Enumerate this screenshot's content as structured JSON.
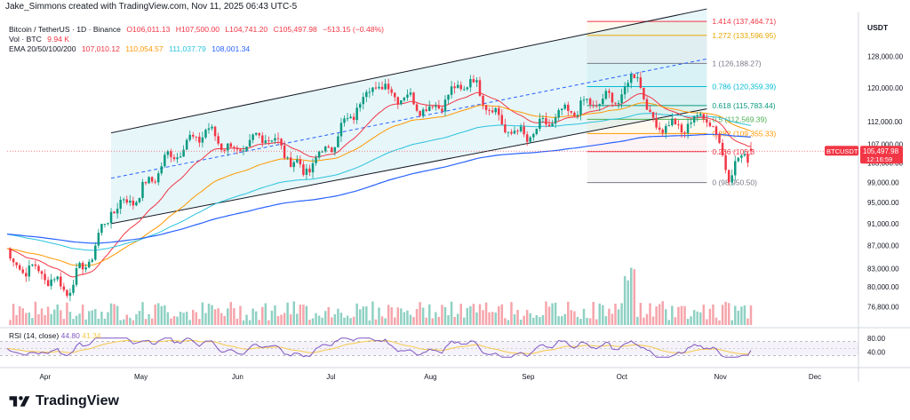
{
  "header": {
    "text": "Jake_Simmons created with TradingView.com, Nov 11, 2025 06:43 UTC-5"
  },
  "legend": {
    "symbol": "Bitcoin / TetherUS · 1D · Binance",
    "open": "O106,011.13",
    "high": "H107,500.00",
    "low": "L104,741.20",
    "close": "C105,497.98",
    "change": "−513.15 (−0.48%)",
    "vol_label": "Vol · BTC",
    "vol_value": "9.94 K",
    "ema_label": "EMA 20/50/100/200",
    "ema20": "107,010.12",
    "ema50": "110,054.57",
    "ema100": "111,037.79",
    "ema200": "108,001.34"
  },
  "currency": "USDT",
  "price_axis": [
    "128,000.00",
    "120,000.00",
    "112,000.00",
    "107,000.00",
    "103,000.00",
    "99,000.00",
    "95,000.00",
    "91,000.00",
    "87,000.00",
    "83,000.00",
    "80,000.00",
    "76,800.00"
  ],
  "price_tag": {
    "symbol": "BTCUSDT",
    "value": "105,497.98",
    "countdown": "12:16:59"
  },
  "fib_levels": [
    {
      "label": "1.414 (137,464.71)",
      "price": 137464.71,
      "color": "#f23645"
    },
    {
      "label": "1.272 (133,596.95)",
      "price": 133596.95,
      "color": "#e6a700"
    },
    {
      "label": "1 (126,188.27)",
      "price": 126188.27,
      "color": "#787b86"
    },
    {
      "label": "0.786 (120,359.39)",
      "price": 120359.39,
      "color": "#00bcd4"
    },
    {
      "label": "0.618 (115,783.44)",
      "price": 115783.44,
      "color": "#089981"
    },
    {
      "label": "0.5 (112,569.39)",
      "price": 112569.39,
      "color": "#4caf50"
    },
    {
      "label": "0.382 (109,355.33)",
      "price": 109355.33,
      "color": "#ff9800"
    },
    {
      "label": "0.236 (105,3",
      "price": 105384,
      "color": "#f23645"
    },
    {
      "label": "0 (98,950.50)",
      "price": 98950.5,
      "color": "#787b86"
    }
  ],
  "rsi": {
    "label": "RSI (14, close)",
    "value1": "44.80",
    "value2": "41.34",
    "axis": [
      "80.00",
      "40.00"
    ]
  },
  "time_axis": [
    "Apr",
    "May",
    "Jun",
    "Jul",
    "Aug",
    "Sep",
    "Oct",
    "Nov",
    "Dec"
  ],
  "footer": {
    "brand": "TradingView"
  },
  "chart_data": {
    "type": "candlestick",
    "symbol": "BTCUSDT",
    "x_range": [
      "Mar 20, 2025",
      "Nov 11, 2025"
    ],
    "y_range": [
      74000,
      140000
    ],
    "x": [
      "Mar 20",
      "Mar 30",
      "Apr 8",
      "Apr 15",
      "Apr 22",
      "May 1",
      "May 10",
      "May 22",
      "Jun 1",
      "Jun 10",
      "Jun 22",
      "Jul 1",
      "Jul 11",
      "Jul 14",
      "Jul 25",
      "Aug 1",
      "Aug 14",
      "Aug 25",
      "Sep 1",
      "Sep 10",
      "Sep 20",
      "Oct 1",
      "Oct 6",
      "Oct 10",
      "Oct 20",
      "Oct 28",
      "Nov 4",
      "Nov 11"
    ],
    "close": [
      84000,
      82500,
      79500,
      84500,
      93500,
      96500,
      104000,
      110000,
      105000,
      109500,
      101000,
      107000,
      117500,
      121000,
      117500,
      114500,
      122000,
      110500,
      108500,
      113000,
      116000,
      118000,
      124500,
      112000,
      110500,
      114000,
      101000,
      105497.98
    ],
    "series": [
      {
        "name": "EMA 20",
        "last": 107010.12
      },
      {
        "name": "EMA 50",
        "last": 110054.57
      },
      {
        "name": "EMA 100",
        "last": 111037.79
      },
      {
        "name": "EMA 200",
        "last": 108001.34
      }
    ],
    "channel": {
      "upper": [
        {
          "x": "Apr 22",
          "y": 109500
        },
        {
          "x": "Oct 28",
          "y": 141000
        }
      ],
      "lower": [
        {
          "x": "Apr 22",
          "y": 91000
        },
        {
          "x": "Oct 28",
          "y": 115000
        }
      ]
    },
    "rsi": {
      "last": 44.8,
      "ma": 41.34,
      "range": [
        0,
        100
      ]
    }
  }
}
